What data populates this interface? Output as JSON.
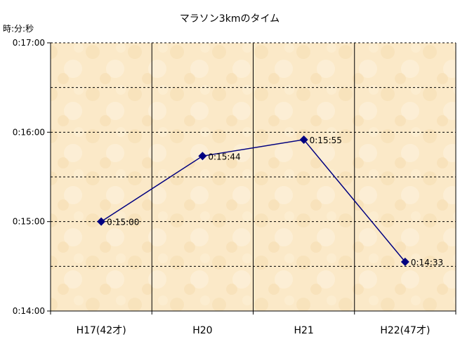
{
  "chart_data": {
    "type": "line",
    "title": "マラソン3kmのタイム",
    "ylabel": "時:分:秒",
    "xlabel": "",
    "categories": [
      "H17(42才)",
      "H20",
      "H21",
      "H22(47才)"
    ],
    "series": [
      {
        "values": [
          "0:15:00",
          "0:15:44",
          "0:15:55",
          "0:14:33"
        ],
        "labels": [
          "0:15:00",
          "0:15:44",
          "0:15:55",
          "0:14:33"
        ]
      }
    ],
    "ylim": [
      "0:14:00",
      "0:17:00"
    ],
    "y_ticks": [
      "0:14:00",
      "0:15:00",
      "0:16:00",
      "0:17:00"
    ],
    "grid": true,
    "legend": "none",
    "colors": {
      "line": "#000080",
      "marker": "#000080",
      "plot_background": "#fbe9c8",
      "axis": "#000000",
      "gridline": "#000000"
    }
  }
}
